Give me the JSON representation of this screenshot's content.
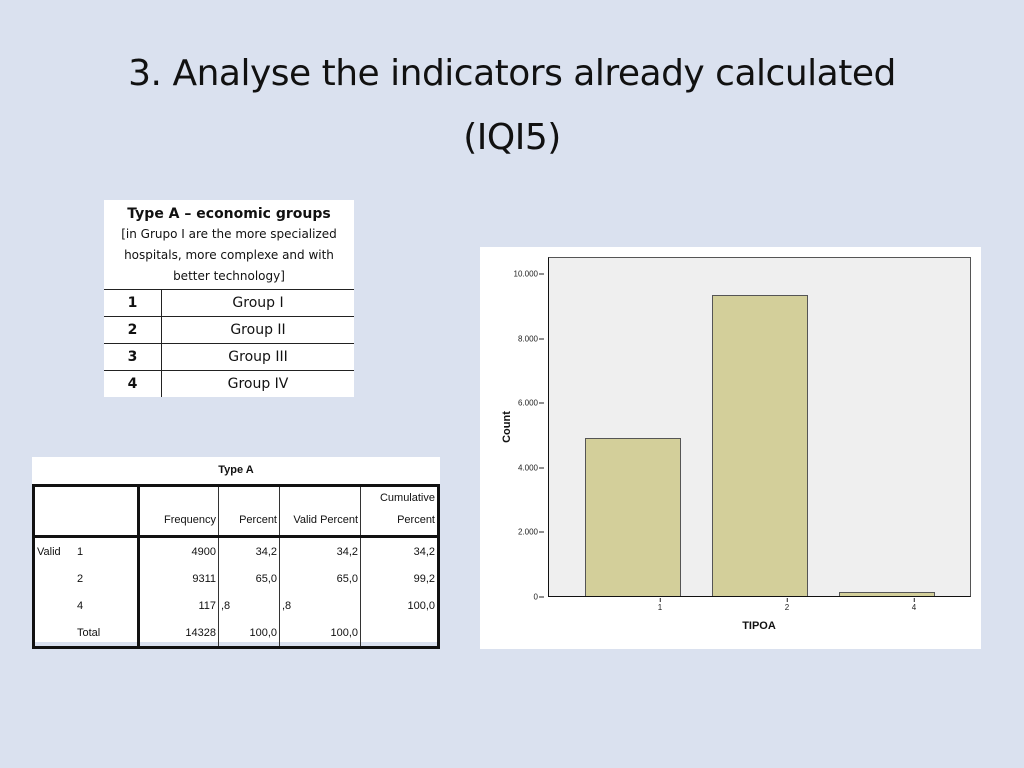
{
  "slide": {
    "title_line1": "3. Analyse the indicators already calculated",
    "title_line2": "(IQI5)"
  },
  "legend_table": {
    "title": "Type A – economic groups",
    "note_lines": [
      "[in Grupo I are the more specialized",
      "hospitals, more complexe and with",
      "better technology]"
    ],
    "rows": [
      {
        "code": "1",
        "name": "Group I"
      },
      {
        "code": "2",
        "name": "Group II"
      },
      {
        "code": "3",
        "name": "Group III"
      },
      {
        "code": "4",
        "name": "Group IV"
      }
    ]
  },
  "frequency_table": {
    "caption": "Type A",
    "headers": {
      "frequency": "Frequency",
      "percent": "Percent",
      "valid_percent": "Valid Percent",
      "cumulative_line1": "Cumulative",
      "cumulative_line2": "Percent"
    },
    "group_label": "Valid",
    "rows": [
      {
        "category": "1",
        "frequency": "4900",
        "percent": "34,2",
        "valid_percent": "34,2",
        "cumulative_percent": "34,2"
      },
      {
        "category": "2",
        "frequency": "9311",
        "percent": "65,0",
        "valid_percent": "65,0",
        "cumulative_percent": "99,2"
      },
      {
        "category": "4",
        "frequency": "117",
        "percent": ",8",
        "valid_percent": ",8",
        "cumulative_percent": "100,0"
      },
      {
        "category": "Total",
        "frequency": "14328",
        "percent": "100,0",
        "valid_percent": "100,0",
        "cumulative_percent": ""
      }
    ]
  },
  "chart": {
    "ylabel": "Count",
    "xlabel": "TIPOA",
    "yticks": [
      "10.000",
      "8.000",
      "6.000",
      "4.000",
      "2.000",
      "0"
    ],
    "xticks": [
      "1",
      "2",
      "4"
    ],
    "bar_color": "#d3cf9a",
    "plot_bg": "#efefef"
  },
  "chart_data": {
    "type": "bar",
    "title": "",
    "categories": [
      "1",
      "2",
      "4"
    ],
    "values": [
      4900,
      9311,
      117
    ],
    "xlabel": "TIPOA",
    "ylabel": "Count",
    "ylim": [
      0,
      10500
    ],
    "yticks": [
      0,
      2000,
      4000,
      6000,
      8000,
      10000
    ],
    "ytick_labels": [
      "0",
      "2.000",
      "4.000",
      "6.000",
      "8.000",
      "10.000"
    ],
    "grid": false,
    "legend": null,
    "bar_color": "#d3cf9a"
  }
}
